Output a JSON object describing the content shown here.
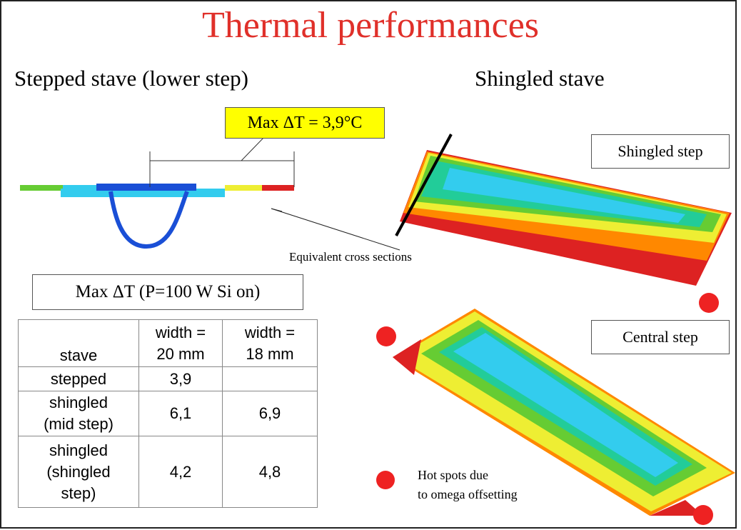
{
  "title": "Thermal performances",
  "left_heading": "Stepped stave (lower step)",
  "right_heading": "Shingled stave",
  "callout": "Max ΔT = 3,9°C",
  "cross_section_label": "Equivalent cross sections",
  "shingled_step_label": "Shingled step",
  "central_step_label": "Central step",
  "table_caption": "Max ΔT (P=100 W Si on)",
  "table": {
    "header": [
      "stave",
      "width =\n20 mm",
      "width =\n18 mm"
    ],
    "rows": [
      [
        "stepped",
        "3,9"
      ],
      [
        "shingled\n(mid step)",
        "6,1",
        "6,9"
      ],
      [
        "shingled\n(shingled\nstep)",
        "4,2",
        "4,8"
      ]
    ]
  },
  "legend": "Hot spots due\nto omega offsetting"
}
